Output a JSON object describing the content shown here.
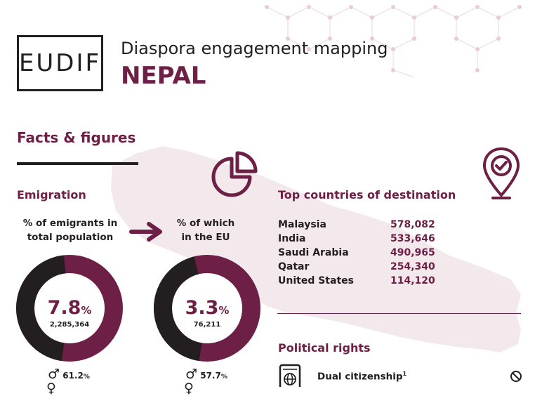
{
  "header": {
    "logo_text": "EUDIF",
    "title": "Diaspora engagement mapping",
    "country": "NEPAL"
  },
  "facts": {
    "section_title": "Facts & figures"
  },
  "emigration": {
    "heading": "Emigration",
    "total_label_line1": "% of emigrants in",
    "total_label_line2": "total population",
    "eu_label_line1": "% of which",
    "eu_label_line2": "in the EU",
    "total_percent": "7.8",
    "total_percent_unit": "%",
    "total_count": "2,285,364",
    "total_fraction": 0.078,
    "eu_percent": "3.3",
    "eu_percent_unit": "%",
    "eu_count": "76,211",
    "eu_fraction": 0.033,
    "total_male_percent": "61.2",
    "eu_male_percent": "57.7",
    "percent_unit": "%"
  },
  "destinations": {
    "heading": "Top countries of destination",
    "rows": [
      {
        "country": "Malaysia",
        "value": "578,082"
      },
      {
        "country": "India",
        "value": "533,646"
      },
      {
        "country": "Saudi Arabia",
        "value": "490,965"
      },
      {
        "country": "Qatar",
        "value": "254,340"
      },
      {
        "country": "United States",
        "value": "114,120"
      }
    ]
  },
  "political_rights": {
    "heading": "Political rights",
    "dual_citizenship_label": "Dual citizenship",
    "dual_citizenship_footnote": "1"
  },
  "colors": {
    "accent": "#6d1f45",
    "dark": "#231f20",
    "map": "#f1e6ea"
  },
  "icons": {
    "pie": "pie-chart-icon",
    "location": "location-pin-check-icon",
    "arrow": "arrow-right-icon",
    "passport": "passport-globe-icon",
    "not_allowed": "prohibited-icon",
    "male": "male-icon",
    "female": "female-icon"
  }
}
